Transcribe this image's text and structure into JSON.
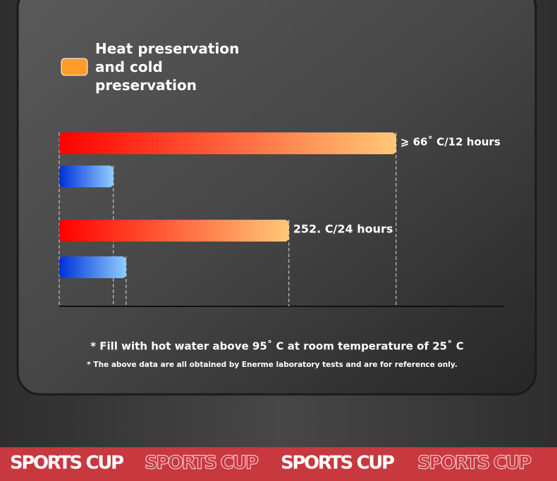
{
  "chart_data": {
    "type": "barh",
    "categories": [
      null,
      null
    ],
    "series": [
      {
        "name": "Heat preservation and cold preservation",
        "color": "#ff9c2a",
        "values": [
          66,
          45
        ]
      },
      {
        "color": "#2a63ff",
        "values": [
          10.6,
          13.1
        ]
      }
    ],
    "xlim": [
      0,
      87.3
    ],
    "annotations": [
      "⩾ 66˚ C/12 hours",
      "252. C/24 hours"
    ],
    "notes": [
      "* Fill with hot water above 95˚ C at room temperature of 25˚ C",
      "* The above data are all obtained by Enerme laboratory tests and are for reference only."
    ]
  },
  "banner": [
    "SPORTS CUP",
    "SPORTS CUP",
    "SPORTS CUP",
    "SPORTS CUP"
  ]
}
